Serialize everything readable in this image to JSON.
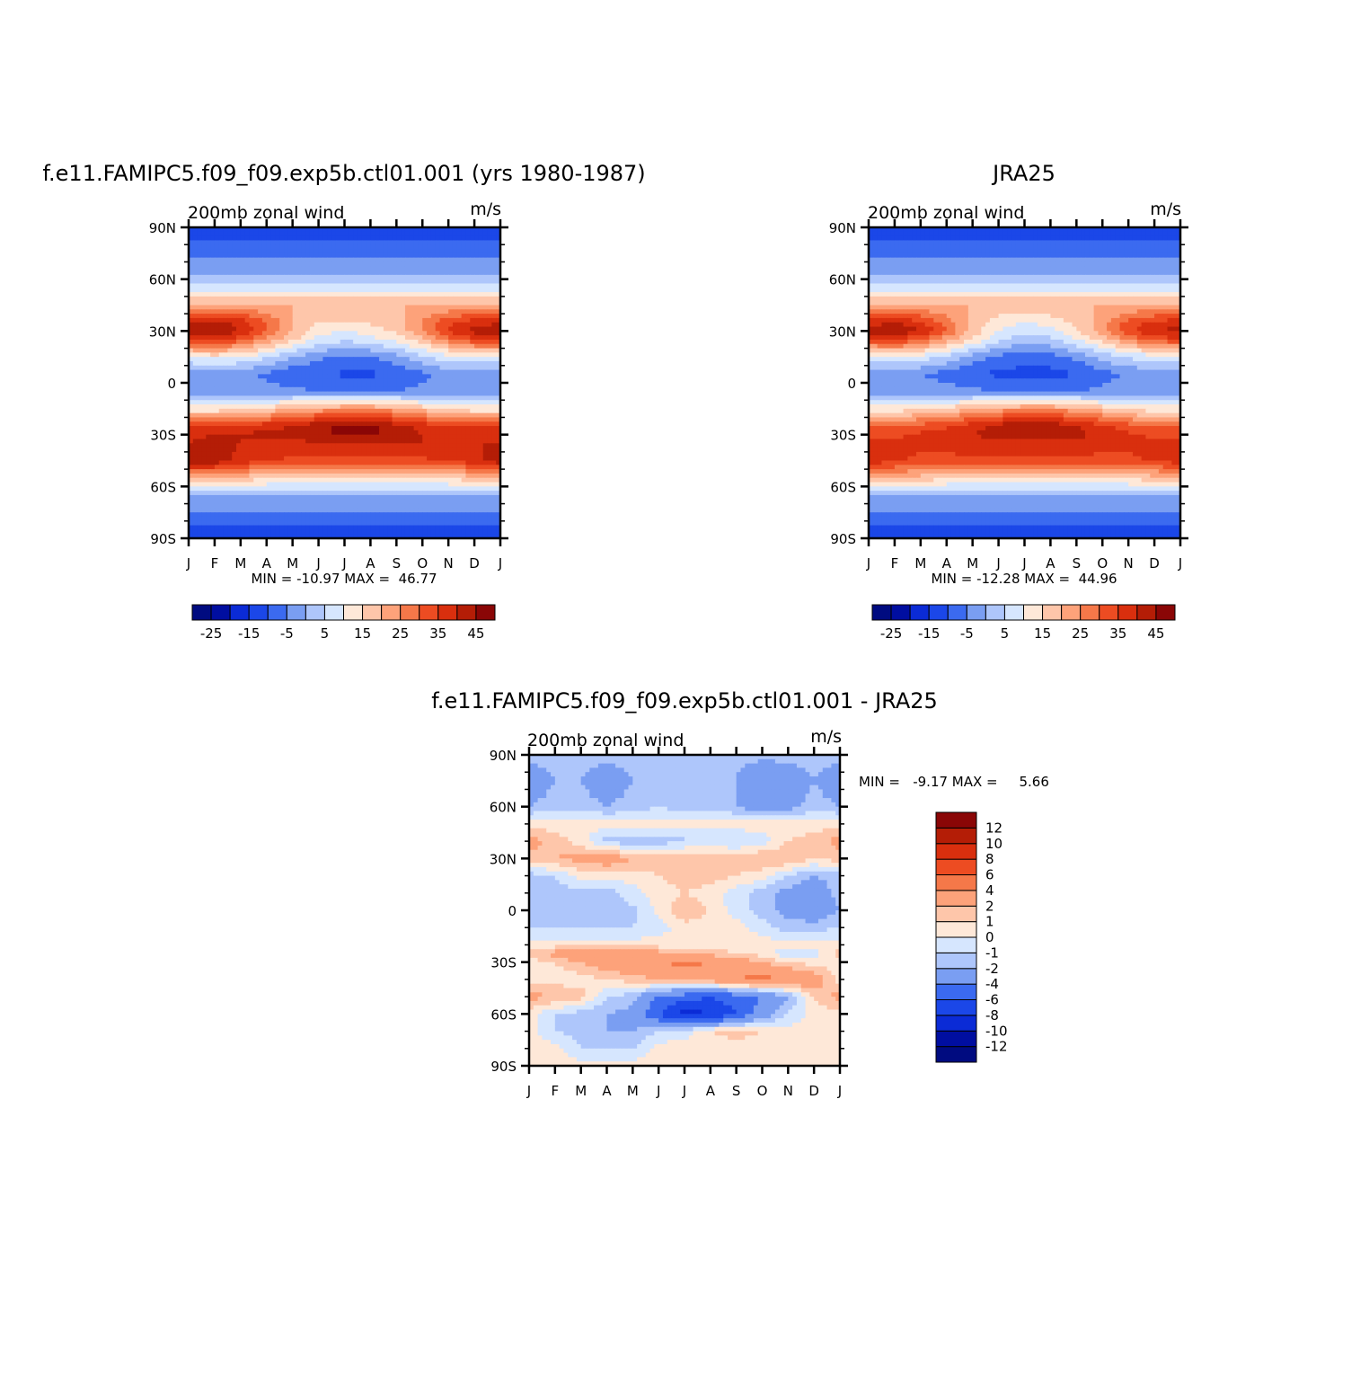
{
  "chart_data": [
    {
      "type": "heatmap",
      "title": "f.e11.FAMIPC5.f09_f09.exp5b.ctl01.001 (yrs 1980-1987)",
      "subtitle": "200mb zonal wind",
      "units": "m/s",
      "x_ticks": [
        "J",
        "F",
        "M",
        "A",
        "M",
        "J",
        "J",
        "A",
        "S",
        "O",
        "N",
        "D",
        "J"
      ],
      "y_ticks": [
        "90N",
        "60N",
        "30N",
        "0",
        "30S",
        "60S",
        "90S"
      ],
      "stats_text": "MIN = -10.97 MAX =  46.77",
      "colorbar": {
        "orientation": "horizontal",
        "levels": [
          -30,
          -25,
          -20,
          -15,
          -10,
          -5,
          0,
          5,
          10,
          15,
          20,
          25,
          30,
          35,
          40,
          45,
          50
        ],
        "tick_labels": [
          "-25",
          "-15",
          "-5",
          "5",
          "15",
          "25",
          "35",
          "45"
        ]
      },
      "lat": [
        90,
        60,
        45,
        35,
        30,
        25,
        15,
        5,
        -5,
        -15,
        -25,
        -30,
        -35,
        -45,
        -55,
        -65,
        -90
      ],
      "months": [
        "J",
        "F",
        "M",
        "A",
        "M",
        "J",
        "J",
        "A",
        "S",
        "O",
        "N",
        "D",
        "J"
      ],
      "values": [
        [
          -14,
          -14,
          -14,
          -14,
          -14,
          -14,
          -14,
          -14,
          -14,
          -14,
          -14,
          -14,
          -14
        ],
        [
          1,
          1,
          1,
          1,
          1,
          1,
          1,
          1,
          1,
          1,
          1,
          1,
          1
        ],
        [
          20,
          20,
          20,
          20,
          20,
          20,
          20,
          20,
          20,
          20,
          20,
          20,
          20
        ],
        [
          40,
          42,
          38,
          30,
          20,
          15,
          15,
          16,
          18,
          25,
          34,
          38,
          40
        ],
        [
          42,
          46,
          40,
          30,
          20,
          12,
          10,
          12,
          16,
          25,
          36,
          42,
          42
        ],
        [
          36,
          38,
          32,
          24,
          16,
          8,
          6,
          8,
          12,
          18,
          28,
          34,
          36
        ],
        [
          10,
          12,
          10,
          6,
          0,
          -4,
          -6,
          -5,
          -2,
          4,
          8,
          10,
          10
        ],
        [
          -4,
          -3,
          -4,
          -6,
          -9,
          -9,
          -11,
          -11,
          -9,
          -6,
          -3,
          -4,
          -4
        ],
        [
          -3,
          -3,
          -3,
          -3,
          -4,
          -5,
          -6,
          -6,
          -5,
          -4,
          -3,
          -3,
          -3
        ],
        [
          12,
          12,
          14,
          16,
          20,
          22,
          24,
          24,
          22,
          18,
          14,
          12,
          12
        ],
        [
          34,
          34,
          36,
          38,
          40,
          44,
          46,
          46,
          42,
          38,
          34,
          34,
          34
        ],
        [
          38,
          40,
          40,
          42,
          42,
          44,
          46,
          46,
          44,
          40,
          38,
          38,
          38
        ],
        [
          40,
          42,
          40,
          38,
          38,
          40,
          40,
          40,
          40,
          40,
          40,
          40,
          40
        ],
        [
          44,
          44,
          38,
          36,
          34,
          34,
          34,
          34,
          34,
          34,
          36,
          38,
          44
        ],
        [
          20,
          20,
          18,
          16,
          14,
          14,
          14,
          14,
          14,
          14,
          16,
          18,
          20
        ],
        [
          0,
          0,
          0,
          0,
          0,
          0,
          0,
          0,
          0,
          0,
          0,
          0,
          0
        ],
        [
          -14,
          -14,
          -14,
          -14,
          -14,
          -14,
          -14,
          -14,
          -14,
          -14,
          -14,
          -14,
          -14
        ]
      ]
    },
    {
      "type": "heatmap",
      "title": "JRA25",
      "subtitle": "200mb zonal wind",
      "units": "m/s",
      "x_ticks": [
        "J",
        "F",
        "M",
        "A",
        "M",
        "J",
        "J",
        "A",
        "S",
        "O",
        "N",
        "D",
        "J"
      ],
      "y_ticks": [
        "90N",
        "60N",
        "30N",
        "0",
        "30S",
        "60S",
        "90S"
      ],
      "stats_text": "MIN = -12.28 MAX =  44.96",
      "colorbar": {
        "orientation": "horizontal",
        "levels": [
          -30,
          -25,
          -20,
          -15,
          -10,
          -5,
          0,
          5,
          10,
          15,
          20,
          25,
          30,
          35,
          40,
          45,
          50
        ],
        "tick_labels": [
          "-25",
          "-15",
          "-5",
          "5",
          "15",
          "25",
          "35",
          "45"
        ]
      },
      "lat": [
        90,
        60,
        45,
        35,
        30,
        25,
        15,
        5,
        -5,
        -15,
        -25,
        -30,
        -35,
        -45,
        -55,
        -65,
        -90
      ],
      "months": [
        "J",
        "F",
        "M",
        "A",
        "M",
        "J",
        "J",
        "A",
        "S",
        "O",
        "N",
        "D",
        "J"
      ],
      "values": [
        [
          -14,
          -14,
          -14,
          -14,
          -14,
          -14,
          -14,
          -14,
          -14,
          -14,
          -14,
          -14,
          -14
        ],
        [
          1,
          1,
          1,
          1,
          1,
          1,
          1,
          1,
          1,
          1,
          1,
          1,
          1
        ],
        [
          20,
          20,
          20,
          20,
          20,
          20,
          20,
          20,
          20,
          20,
          20,
          20,
          20
        ],
        [
          38,
          40,
          36,
          28,
          18,
          12,
          10,
          12,
          16,
          22,
          32,
          36,
          38
        ],
        [
          42,
          44,
          40,
          30,
          18,
          10,
          6,
          8,
          14,
          24,
          34,
          40,
          42
        ],
        [
          34,
          36,
          30,
          22,
          14,
          6,
          2,
          4,
          10,
          16,
          26,
          32,
          34
        ],
        [
          8,
          10,
          8,
          4,
          -2,
          -6,
          -8,
          -7,
          -4,
          2,
          6,
          8,
          8
        ],
        [
          -4,
          -3,
          -5,
          -7,
          -10,
          -11,
          -12,
          -12,
          -10,
          -7,
          -4,
          -4,
          -4
        ],
        [
          -2,
          -2,
          -2,
          -3,
          -4,
          -5,
          -6,
          -6,
          -5,
          -4,
          -3,
          -2,
          -2
        ],
        [
          12,
          12,
          14,
          16,
          20,
          22,
          24,
          24,
          22,
          18,
          14,
          12,
          12
        ],
        [
          30,
          30,
          32,
          34,
          38,
          42,
          44,
          44,
          40,
          36,
          32,
          30,
          30
        ],
        [
          34,
          34,
          36,
          38,
          40,
          42,
          44,
          44,
          42,
          38,
          36,
          34,
          34
        ],
        [
          36,
          36,
          36,
          36,
          38,
          38,
          38,
          38,
          38,
          36,
          36,
          36,
          36
        ],
        [
          38,
          36,
          34,
          34,
          34,
          34,
          34,
          34,
          34,
          34,
          34,
          36,
          38
        ],
        [
          20,
          20,
          18,
          16,
          14,
          14,
          14,
          14,
          14,
          14,
          16,
          18,
          20
        ],
        [
          0,
          0,
          0,
          0,
          0,
          0,
          0,
          0,
          0,
          0,
          0,
          0,
          0
        ],
        [
          -14,
          -14,
          -14,
          -14,
          -14,
          -14,
          -14,
          -14,
          -14,
          -14,
          -14,
          -14,
          -14
        ]
      ]
    },
    {
      "type": "heatmap",
      "title": "f.e11.FAMIPC5.f09_f09.exp5b.ctl01.001 - JRA25",
      "subtitle": "200mb zonal wind",
      "units": "m/s",
      "x_ticks": [
        "J",
        "F",
        "M",
        "A",
        "M",
        "J",
        "J",
        "A",
        "S",
        "O",
        "N",
        "D",
        "J"
      ],
      "y_ticks": [
        "90N",
        "60N",
        "30N",
        "0",
        "30S",
        "60S",
        "90S"
      ],
      "stats_text": "MIN =   -9.17 MAX =     5.66",
      "colorbar": {
        "orientation": "vertical",
        "levels": [
          -14,
          -12,
          -10,
          -8,
          -6,
          -4,
          -2,
          -1,
          0,
          1,
          2,
          4,
          6,
          8,
          10,
          12,
          14
        ],
        "tick_labels": [
          "-12",
          "-10",
          "-8",
          "-6",
          "-4",
          "-2",
          "-1",
          "0",
          "1",
          "2",
          "4",
          "6",
          "8",
          "10",
          "12"
        ]
      },
      "lat": [
        90,
        75,
        60,
        50,
        40,
        30,
        20,
        10,
        0,
        -10,
        -20,
        -25,
        -30,
        -40,
        -50,
        -60,
        -70,
        -80,
        -90
      ],
      "months": [
        "J",
        "F",
        "M",
        "A",
        "M",
        "J",
        "J",
        "A",
        "S",
        "O",
        "N",
        "D",
        "J"
      ],
      "values": [
        [
          -1.5,
          -1.5,
          -1.5,
          -1.5,
          -1.5,
          -1.5,
          -1.5,
          -1.5,
          -1.5,
          -1.5,
          -1.5,
          -1.5,
          -1.5
        ],
        [
          -3,
          -2,
          -2,
          -3,
          -2,
          -1.5,
          -2,
          -2,
          -2,
          -4,
          -3,
          -2,
          -3
        ],
        [
          -2,
          -1.5,
          -1.5,
          -2,
          -1.5,
          -1,
          -1.5,
          -1.5,
          -2,
          -3,
          -2.5,
          -1.5,
          -2
        ],
        [
          0.5,
          0.5,
          0.5,
          0.5,
          0.3,
          0.3,
          0.5,
          0.5,
          0.5,
          0.5,
          0.5,
          0.5,
          0.5
        ],
        [
          2.5,
          1.5,
          0.5,
          -1.5,
          -1.5,
          -1.5,
          -1.2,
          -1,
          -1,
          -0.5,
          1,
          1.5,
          2.5
        ],
        [
          1.5,
          2,
          2.5,
          3,
          2,
          1.5,
          2,
          2,
          1.5,
          2,
          2,
          1,
          1.5
        ],
        [
          -1.5,
          -1,
          0.5,
          0.5,
          0.5,
          1,
          1.5,
          1.5,
          1,
          0.5,
          -1,
          -2,
          -1.5
        ],
        [
          -1.5,
          -1.5,
          -1.5,
          -1.5,
          -0.5,
          0.5,
          1,
          0.5,
          -0.5,
          -1.5,
          -2.5,
          -3,
          -1.5
        ],
        [
          -2,
          -1.5,
          -1.5,
          -1.5,
          -1.2,
          0.2,
          2,
          0.8,
          -0.5,
          -1.5,
          -2.5,
          -3,
          -2
        ],
        [
          -1,
          -1,
          -1,
          -1,
          -1,
          -0.5,
          0.5,
          0.5,
          0.5,
          -0.5,
          -1.5,
          -1.5,
          -1
        ],
        [
          0.5,
          0.5,
          0.5,
          0.5,
          0.5,
          0.5,
          0.3,
          0.5,
          0.5,
          0.5,
          0.5,
          0.5,
          0.5
        ],
        [
          1.5,
          2.5,
          4.5,
          4,
          3.5,
          2.5,
          1.5,
          1.5,
          1,
          0.5,
          -1,
          -0.5,
          1.5
        ],
        [
          0.5,
          1,
          2,
          3,
          3.5,
          4,
          4.5,
          4,
          3,
          2,
          1,
          0.5,
          0.5
        ],
        [
          0.5,
          0.5,
          0.5,
          1,
          1.5,
          2,
          2.5,
          3,
          4,
          4.5,
          4,
          3,
          0.5
        ],
        [
          2.5,
          2,
          1.5,
          -1,
          -1.5,
          -4,
          -5,
          -6,
          -5,
          -4,
          -2,
          1,
          2.5
        ],
        [
          0.5,
          -1,
          -1.5,
          -2,
          -2.5,
          -6,
          -9,
          -8,
          -6,
          -3,
          -1,
          0.5,
          0.5
        ],
        [
          0.5,
          -1,
          -1.5,
          -2,
          -2,
          -1,
          -0.5,
          1,
          1.5,
          1,
          0.5,
          0.5,
          0.5
        ],
        [
          0.5,
          0.5,
          -1,
          -1.2,
          -1,
          0.5,
          0.5,
          0.3,
          0.5,
          0.5,
          0.5,
          0.5,
          0.5
        ],
        [
          0.5,
          0.5,
          0.5,
          0.5,
          0.5,
          0.5,
          0.5,
          0.5,
          0.5,
          0.5,
          0.5,
          0.5,
          0.5
        ]
      ]
    }
  ],
  "palette": [
    "#000b80",
    "#000ea0",
    "#0b2bd6",
    "#1b47e8",
    "#3b6af0",
    "#7a9ef2",
    "#aec6fb",
    "#d6e6fe",
    "#fee8d8",
    "#fec6aa",
    "#fda27a",
    "#f57849",
    "#ed4c22",
    "#d92f0e",
    "#b41d06",
    "#8a0606"
  ],
  "colors": {
    "frame": "#000000",
    "background": "#ffffff"
  }
}
